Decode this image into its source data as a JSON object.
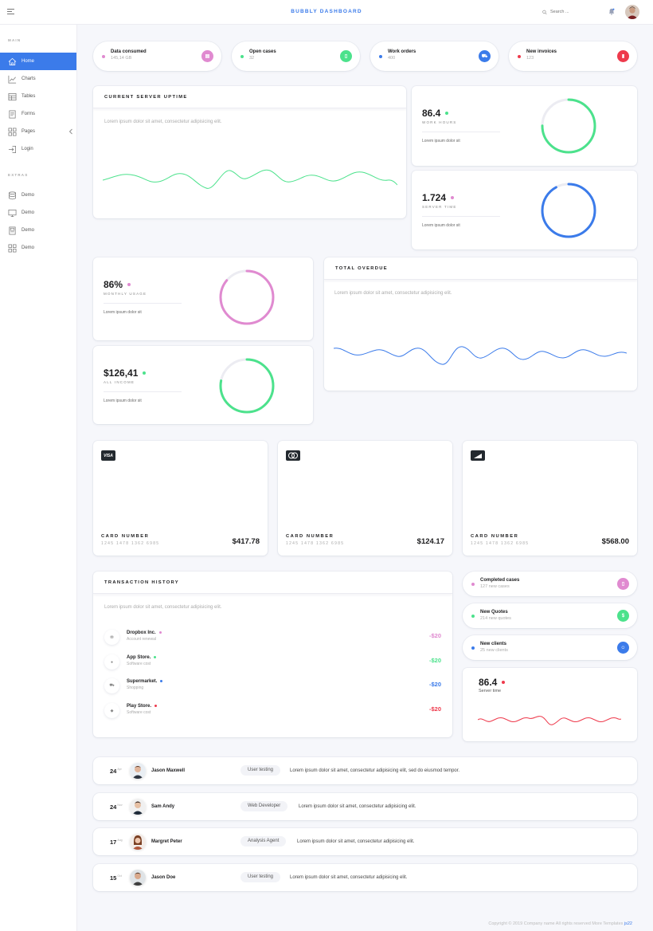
{
  "header": {
    "brand": "BUBBLY DASHBOARD",
    "search_placeholder": "Search ..."
  },
  "sidebar": {
    "main_heading": "MAIN",
    "extras_heading": "EXTRAS",
    "main_items": [
      {
        "label": "Home",
        "icon": "home-icon",
        "active": true
      },
      {
        "label": "Charts",
        "icon": "chart-icon"
      },
      {
        "label": "Tables",
        "icon": "table-icon"
      },
      {
        "label": "Forms",
        "icon": "form-icon"
      },
      {
        "label": "Pages",
        "icon": "grid-icon"
      },
      {
        "label": "Login",
        "icon": "login-icon"
      }
    ],
    "extra_items": [
      {
        "label": "Demo",
        "icon": "database-icon"
      },
      {
        "label": "Demo",
        "icon": "monitor-icon"
      },
      {
        "label": "Demo",
        "icon": "document-icon"
      },
      {
        "label": "Demo",
        "icon": "grid-icon"
      }
    ]
  },
  "stats": [
    {
      "title": "Data consumed",
      "value": "145,14 GB",
      "color": "#e08ad0"
    },
    {
      "title": "Open cases",
      "value": "32",
      "color": "#4ce28c"
    },
    {
      "title": "Work orders",
      "value": "400",
      "color": "#3b7bea"
    },
    {
      "title": "New invoices",
      "value": "123",
      "color": "#ee3a4c"
    }
  ],
  "uptime": {
    "title": "CURRENT SERVER UPTIME",
    "text": "Lorem ipsum dolor sit amet, consectetur adipisicing elit."
  },
  "work_hours": {
    "value": "86.4",
    "label": "WORK HOURS",
    "note": "Lorem ipsum dolor sit",
    "color": "#4ce28c",
    "progress": 0.75
  },
  "server_time": {
    "value": "1.724",
    "label": "SERVER TIME",
    "note": "Lorem ipsum dolor sit",
    "color": "#3b7bea",
    "dot": "#e08ad0",
    "progress": 0.92
  },
  "monthly_usage": {
    "value": "86%",
    "label": "MONTHLY USAGE",
    "note": "Lorem ipsum dolor sit",
    "color": "#e08ad0",
    "progress": 0.86
  },
  "income": {
    "value": "$126,41",
    "label": "ALL INCOME",
    "note": "Lorem ipsum dolor sit",
    "color": "#4ce28c",
    "progress": 0.78
  },
  "overdue": {
    "title": "TOTAL OVERDUE",
    "text": "Lorem ipsum dolor sit amet, consectetur adipisicing elit."
  },
  "cards": [
    {
      "brand": "VISA",
      "label": "CARD NUMBER",
      "number": "1245 1478 1362 6985",
      "amount": "$417.78"
    },
    {
      "brand": "",
      "label": "CARD NUMBER",
      "number": "1245 1478 1362 6985",
      "amount": "$124.17"
    },
    {
      "brand": "",
      "label": "CARD NUMBER",
      "number": "1245 1478 1362 6985",
      "amount": "$568.00"
    }
  ],
  "transactions": {
    "title": "TRANSACTION HISTORY",
    "text": "Lorem ipsum dolor sit amet, consectetur adipisicing elit.",
    "items": [
      {
        "name": "Dropbox Inc.",
        "sub": "Account renewal",
        "amount": "-$20",
        "color": "#e08ad0"
      },
      {
        "name": "App Store.",
        "sub": "Software cost",
        "amount": "-$20",
        "color": "#4ce28c"
      },
      {
        "name": "Supermarket.",
        "sub": "Shopping",
        "amount": "-$20",
        "color": "#3b7bea"
      },
      {
        "name": "Play Store.",
        "sub": "Software cost",
        "amount": "-$20",
        "color": "#ee3a4c"
      }
    ]
  },
  "side_stats": [
    {
      "title": "Completed cases",
      "sub": "127 new cases",
      "color": "#e08ad0",
      "icon": "clipboard-icon"
    },
    {
      "title": "New Quotes",
      "sub": "214 new quotes",
      "color": "#4ce28c",
      "icon": "dollar-icon"
    },
    {
      "title": "New clients",
      "sub": "25 new clients",
      "color": "#3b7bea",
      "icon": "users-icon"
    }
  ],
  "server_mini": {
    "value": "86.4",
    "label": "Server time",
    "color": "#ee3a4c"
  },
  "activity": [
    {
      "day": "24",
      "month": "Apr",
      "name": "Jason Maxwell",
      "tag": "User testing",
      "text": "Lorem ipsum dolor sit amet, consectetur adipisicing elit, sed do eiusmod tempor."
    },
    {
      "day": "24",
      "month": "Nov",
      "name": "Sam Andy",
      "tag": "Web Developer",
      "text": "Lorem ipsum dolor sit amet, consectetur adipisicing elit."
    },
    {
      "day": "17",
      "month": "Aug",
      "name": "Margret Peter",
      "tag": "Analysis Agent",
      "text": "Lorem ipsum dolor sit amet, consectetur adipisicing elit."
    },
    {
      "day": "15",
      "month": "Oct",
      "name": "Jason Doe",
      "tag": "User testing",
      "text": "Lorem ipsum dolor sit amet, consectetur adipisicing elit."
    }
  ],
  "footer": {
    "text": "Copyright © 2019 Company name All rights reserved More Templates",
    "link": "js22"
  }
}
